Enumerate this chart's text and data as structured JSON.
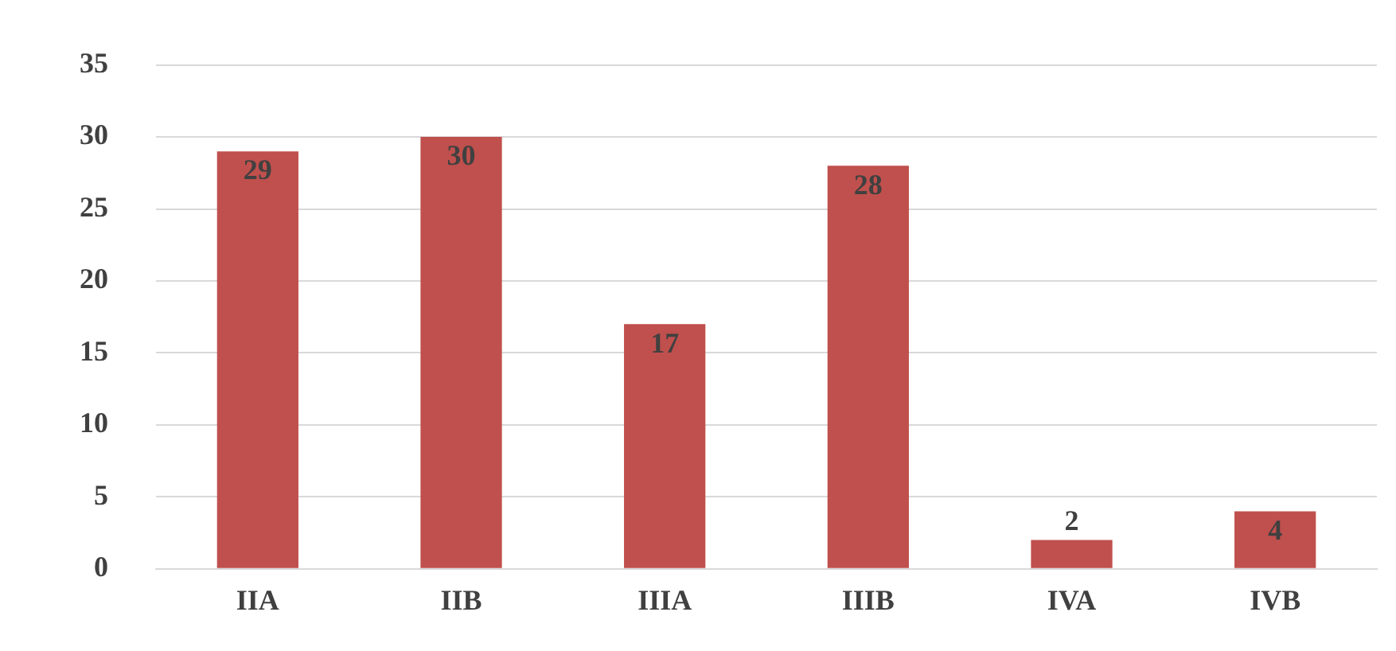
{
  "chart_data": {
    "type": "bar",
    "categories": [
      "IIA",
      "IIB",
      "IIIA",
      "IIIB",
      "IVA",
      "IVB"
    ],
    "values": [
      29,
      30,
      17,
      28,
      2,
      4
    ],
    "color": "#c0504d",
    "ylim": [
      0,
      35
    ],
    "yticks": [
      0,
      5,
      10,
      15,
      20,
      25,
      30,
      35
    ],
    "grid": "y",
    "data_labels": true
  }
}
